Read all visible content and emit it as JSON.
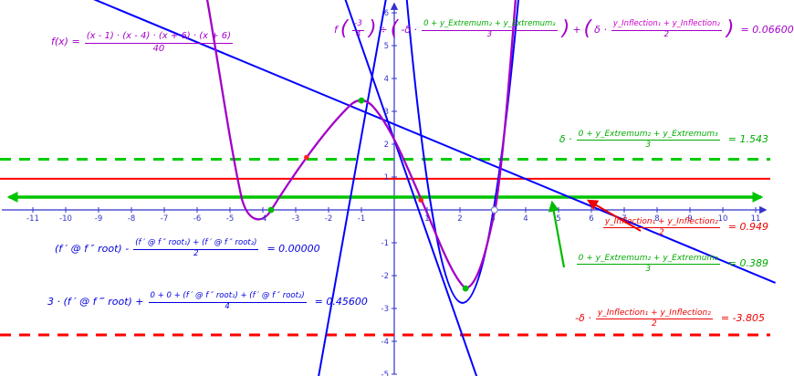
{
  "formulas": {
    "f_def": {
      "lhs": "f(x) =",
      "numerator": "(x - 1) · (x - 4) · (x + 6) · (x + 6)",
      "denominator": "40"
    },
    "main": {
      "prefix": "f",
      "open1": "(",
      "arg_num": "-3",
      "arg_den": "4",
      "close1": ")",
      "op": "÷",
      "open2": "(",
      "t1_coef": "-δ ·",
      "t1_num": "0 + y_Extremum₂ + y_Extremum₃",
      "t1_den": "3",
      "close2": ")",
      "plus": "+",
      "open3": "(",
      "t2_coef": "δ ·",
      "t2_num": "y_Inflection₁ + y_Inflection₂",
      "t2_den": "2",
      "close3": ")",
      "result": "= 0.06600"
    },
    "blue1": {
      "lead": "(f ′ @ f ″ root) -",
      "num": "(f ′ @ f ″ root₁) + (f ′ @ f ″ root₂)",
      "den": "2",
      "result": "= 0.00000"
    },
    "blue2": {
      "lead": "3 · (f ′ @ f ‴ root) +",
      "num": "0 + 0 + (f ′ @ f ″ root₁) + (f ′ @ f ″ root₂)",
      "den": "4",
      "result": "= 0.45600"
    }
  },
  "side_labels": {
    "green1": {
      "coef": "δ ·",
      "num": "0 + y_Extremum₂ + y_Extremum₃",
      "den": "3",
      "result": "= 1.543"
    },
    "red1": {
      "num": "y_Inflection₁ + y_Inflection₂",
      "den": "2",
      "result": "= 0.949"
    },
    "green2": {
      "num": "0 + y_Extremum₂ + y_Extremum₃",
      "den": "3",
      "result": "= 0.389"
    },
    "red2": {
      "coef": "-δ ·",
      "num": "y_Inflection₁ + y_Inflection₂",
      "den": "2",
      "result": "= -3.805"
    }
  },
  "axes": {
    "x_ticks": [
      -11,
      -10,
      -9,
      -8,
      -7,
      -6,
      -5,
      -4,
      -3,
      -2,
      -1,
      1,
      2,
      3,
      4,
      5,
      6,
      7,
      8,
      9,
      10,
      11
    ],
    "y_ticks": [
      -5,
      -4,
      -3,
      -2,
      -1,
      1,
      2,
      3,
      4,
      5,
      6
    ]
  },
  "chart_data": {
    "type": "line",
    "x_range": [
      -12,
      11.4
    ],
    "y_range": [
      -5.05,
      6.4
    ],
    "grid": false,
    "axis_color": "#3333cc",
    "functions": [
      {
        "name": "f",
        "expression": "f(x) = (x - 1)(x - 4)(x + 6)(x + 6) / 40",
        "color": "#a300c8",
        "features": {
          "local_max": [
            -1.0,
            3.33
          ],
          "local_min": [
            2.17,
            -2.39
          ],
          "roots_marked": [
            -3.75,
            3.05
          ]
        }
      },
      {
        "name": "blue-parabola",
        "expression": "upward parabola, vertex (2.08, -2.83), a ≈ 3.2",
        "color": "#0000ff"
      }
    ],
    "segments": [
      {
        "name": "blue-line-shallow",
        "x1": -9.5,
        "y1": 6.56,
        "x2": 11.6,
        "y2": -2.22,
        "color": "#0000ff"
      },
      {
        "name": "blue-line-steep-left",
        "x1": -0.22,
        "y1": 6.61,
        "x2": -2.33,
        "y2": -5.22,
        "color": "#0000ff"
      },
      {
        "name": "blue-line-steep-right",
        "x1": -1.56,
        "y1": 6.61,
        "x2": 2.56,
        "y2": -5.22,
        "color": "#0000ff"
      }
    ],
    "parabola": {
      "vx": 2.08,
      "vy": -2.83,
      "a": 3.2,
      "top_y": 6.9
    },
    "horizontal_lines": [
      {
        "name": "green-dashed-line",
        "y": 1.543,
        "color": "#00cc00",
        "width": 3,
        "dash": "12 9"
      },
      {
        "name": "red-solid-line",
        "y": 0.949,
        "color": "#ff0000",
        "width": 2
      },
      {
        "name": "green-double-arrow-line",
        "y": 0.389,
        "color": "#00c400",
        "width": 3.5,
        "arrows": true
      },
      {
        "name": "red-dashed-line",
        "y": -3.805,
        "color": "#ff0000",
        "width": 3,
        "dash": "12 9"
      }
    ],
    "points": [
      {
        "name": "root-point-left",
        "x": -3.75,
        "y": 0,
        "color": "#00bb00"
      },
      {
        "name": "local-max-point",
        "x": -1.0,
        "y": 3.33,
        "color": "#00bb00"
      },
      {
        "name": "local-min-point",
        "x": 2.17,
        "y": -2.39,
        "color": "#00bb00"
      },
      {
        "name": "root-point-right",
        "x": 3.05,
        "y": 0,
        "color": "#ffffff",
        "stroke": "#7788cc"
      },
      {
        "name": "inflection-point-left",
        "x": -2.67,
        "y": 1.6,
        "color": "#ff2222",
        "r": 2.8
      },
      {
        "name": "inflection-point-right",
        "x": 0.81,
        "y": 0.3,
        "color": "#ff2222",
        "r": 2.8
      }
    ]
  }
}
